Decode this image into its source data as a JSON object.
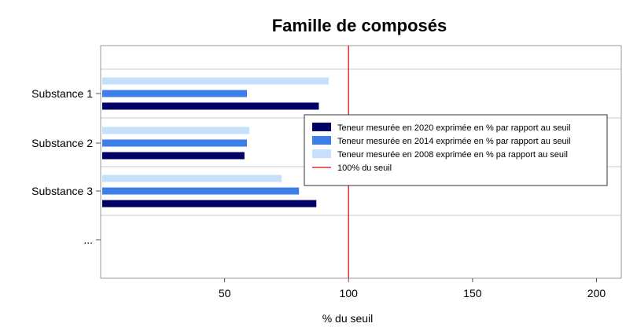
{
  "chart_data": {
    "type": "bar",
    "orientation": "horizontal",
    "title": "Famille de composés",
    "xlabel": "% du seuil",
    "ylabel": "",
    "categories": [
      "Substance 1",
      "Substance 2",
      "Substance 3",
      "..."
    ],
    "xlim": [
      0,
      210
    ],
    "xticks": [
      50,
      100,
      150,
      200
    ],
    "series": [
      {
        "name": "Teneur mesurée en 2020 exprimée en % par rapport au seuil",
        "color": "#000066",
        "values": [
          88,
          58,
          87,
          null
        ]
      },
      {
        "name": "Teneur mesurée en 2014  exprimée en % par rapport au seuil",
        "color": "#3d7ee8",
        "values": [
          59,
          59,
          80,
          null
        ]
      },
      {
        "name": "Teneur mesurée en 2008 exprimée en % pa rapport au seuil",
        "color": "#c6e0fb",
        "values": [
          92,
          60,
          73,
          null
        ]
      }
    ],
    "reference_line": {
      "name": "100% du seuil",
      "value": 100,
      "color": "#e03030"
    },
    "grid": "horizontal",
    "legend_position": "right"
  }
}
